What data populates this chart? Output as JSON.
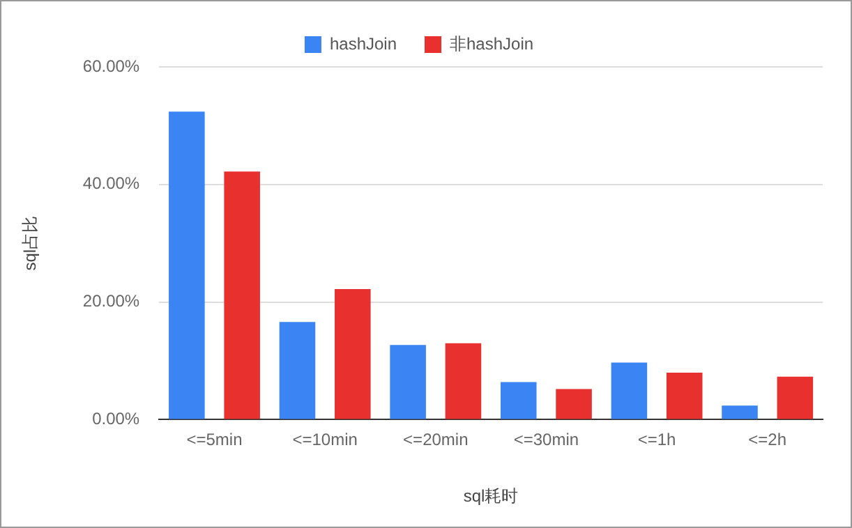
{
  "chart_data": {
    "type": "bar",
    "xlabel": "sql耗时",
    "ylabel": "sql占比",
    "categories": [
      "<=5min",
      "<=10min",
      "<=20min",
      "<=30min",
      "<=1h",
      "<=2h"
    ],
    "series": [
      {
        "name": "hashJoin",
        "color": "#3a84f4",
        "values": [
          52.4,
          16.6,
          12.7,
          6.4,
          9.7,
          2.4
        ]
      },
      {
        "name": "非hashJoin",
        "color": "#e8302f",
        "values": [
          42.2,
          22.2,
          13.0,
          5.2,
          8.0,
          7.3
        ]
      }
    ],
    "ylim": [
      0,
      60
    ],
    "yticks": [
      {
        "value": 0,
        "label": "0.00%"
      },
      {
        "value": 20,
        "label": "20.00%"
      },
      {
        "value": 40,
        "label": "40.00%"
      },
      {
        "value": 60,
        "label": "60.00%"
      }
    ],
    "grid": "y",
    "legend": "top"
  }
}
